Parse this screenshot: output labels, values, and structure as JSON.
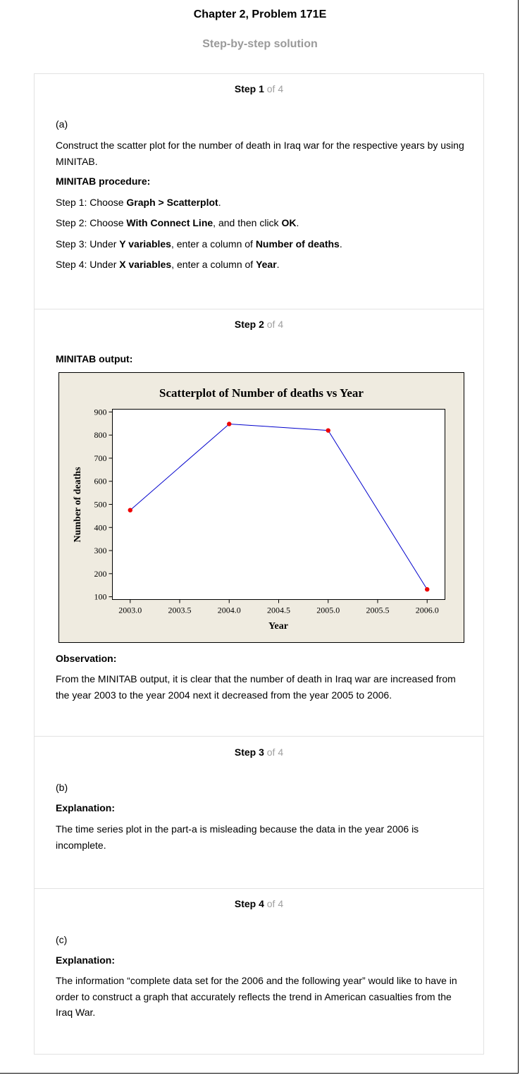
{
  "header": {
    "title": "Chapter 2, Problem 171E",
    "subtitle": "Step-by-step solution"
  },
  "steps": [
    {
      "label": "Step 1",
      "of": "of 4",
      "part": "(a)",
      "intro": "Construct the scatter plot for the number of death in Iraq war for the respective years by using MINITAB.",
      "procedure_heading": "MINITAB procedure:",
      "s1_pre": "Step 1: Choose ",
      "s1_bold": "Graph > Scatterplot",
      "s1_post": ".",
      "s2_pre": "Step 2: Choose ",
      "s2_bold1": "With Connect Line",
      "s2_mid": ", and then click ",
      "s2_bold2": "OK",
      "s2_post": ".",
      "s3_pre": "Step 3: Under ",
      "s3_bold1": "Y variables",
      "s3_mid": ", enter a column of ",
      "s3_bold2": "Number of deaths",
      "s3_post": ".",
      "s4_pre": "Step 4: Under ",
      "s4_bold1": "X variables",
      "s4_mid": ", enter a column of ",
      "s4_bold2": "Year",
      "s4_post": "."
    },
    {
      "label": "Step 2",
      "of": "of 4",
      "output_heading": "MINITAB output:",
      "observation_heading": "Observation:",
      "observation": "From the MINITAB output, it is clear that the number of death in Iraq war are increased from the year 2003 to the year 2004 next it decreased from the year 2005 to 2006."
    },
    {
      "label": "Step 3",
      "of": "of 4",
      "part": "(b)",
      "explanation_heading": "Explanation:",
      "explanation": "The time series plot in the part-a is misleading because the data in the year 2006 is incomplete."
    },
    {
      "label": "Step 4",
      "of": "of 4",
      "part": "(c)",
      "explanation_heading": "Explanation:",
      "explanation": "The information “complete data set for the 2006 and the following year” would like to have in order to construct a graph that accurately reflects the trend in American casualties from the Iraq War."
    }
  ],
  "chart_data": {
    "type": "line",
    "title": "Scatterplot of Number of deaths vs Year",
    "xlabel": "Year",
    "ylabel": "Number of deaths",
    "x": [
      2003.0,
      2004.0,
      2005.0,
      2006.0
    ],
    "y": [
      475,
      848,
      820,
      132
    ],
    "xlim": [
      2002.82,
      2006.18
    ],
    "ylim": [
      88,
      912
    ],
    "xticks": [
      "2003.0",
      "2003.5",
      "2004.0",
      "2004.5",
      "2005.0",
      "2005.5",
      "2006.0"
    ],
    "yticks": [
      "100",
      "200",
      "300",
      "400",
      "500",
      "600",
      "700",
      "800",
      "900"
    ],
    "background_color": "#efebe0",
    "line_color": "#0000cc",
    "marker_color": "#ee0000",
    "grid": false,
    "legend": "none"
  }
}
